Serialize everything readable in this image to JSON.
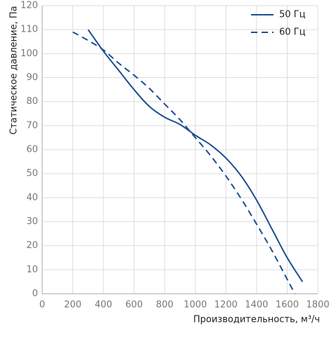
{
  "chart_data": {
    "type": "line",
    "x_label": "Производительность, м³/ч",
    "y_label": "Статическое давление, Па",
    "xlim": [
      0,
      1800
    ],
    "xticks": [
      0,
      200,
      400,
      600,
      800,
      1000,
      1200,
      1400,
      1600,
      1800
    ],
    "ylim": [
      0,
      120
    ],
    "yticks": [
      0,
      10,
      20,
      30,
      40,
      50,
      60,
      70,
      80,
      90,
      100,
      110,
      120
    ],
    "grid": true,
    "legend": "upper right",
    "series": [
      {
        "name": "50 Гц",
        "color": "#1a4f93",
        "dashed": false,
        "x": [
          300,
          400,
          500,
          600,
          700,
          800,
          900,
          1000,
          1100,
          1200,
          1300,
          1400,
          1500,
          1600,
          1700
        ],
        "values": [
          110,
          101,
          93,
          85,
          78,
          73.5,
          70.5,
          66,
          62,
          56.5,
          49,
          39,
          27,
          15,
          5
        ]
      },
      {
        "name": "60 Гц",
        "color": "#1a4f93",
        "dashed": true,
        "x": [
          200,
          300,
          400,
          500,
          600,
          700,
          800,
          900,
          1000,
          1100,
          1200,
          1300,
          1400,
          1500,
          1600,
          1650
        ],
        "values": [
          109,
          105.5,
          101.5,
          96,
          91,
          85.5,
          79,
          72.5,
          65,
          57.5,
          49,
          39.5,
          29,
          18,
          6,
          0
        ]
      }
    ]
  }
}
